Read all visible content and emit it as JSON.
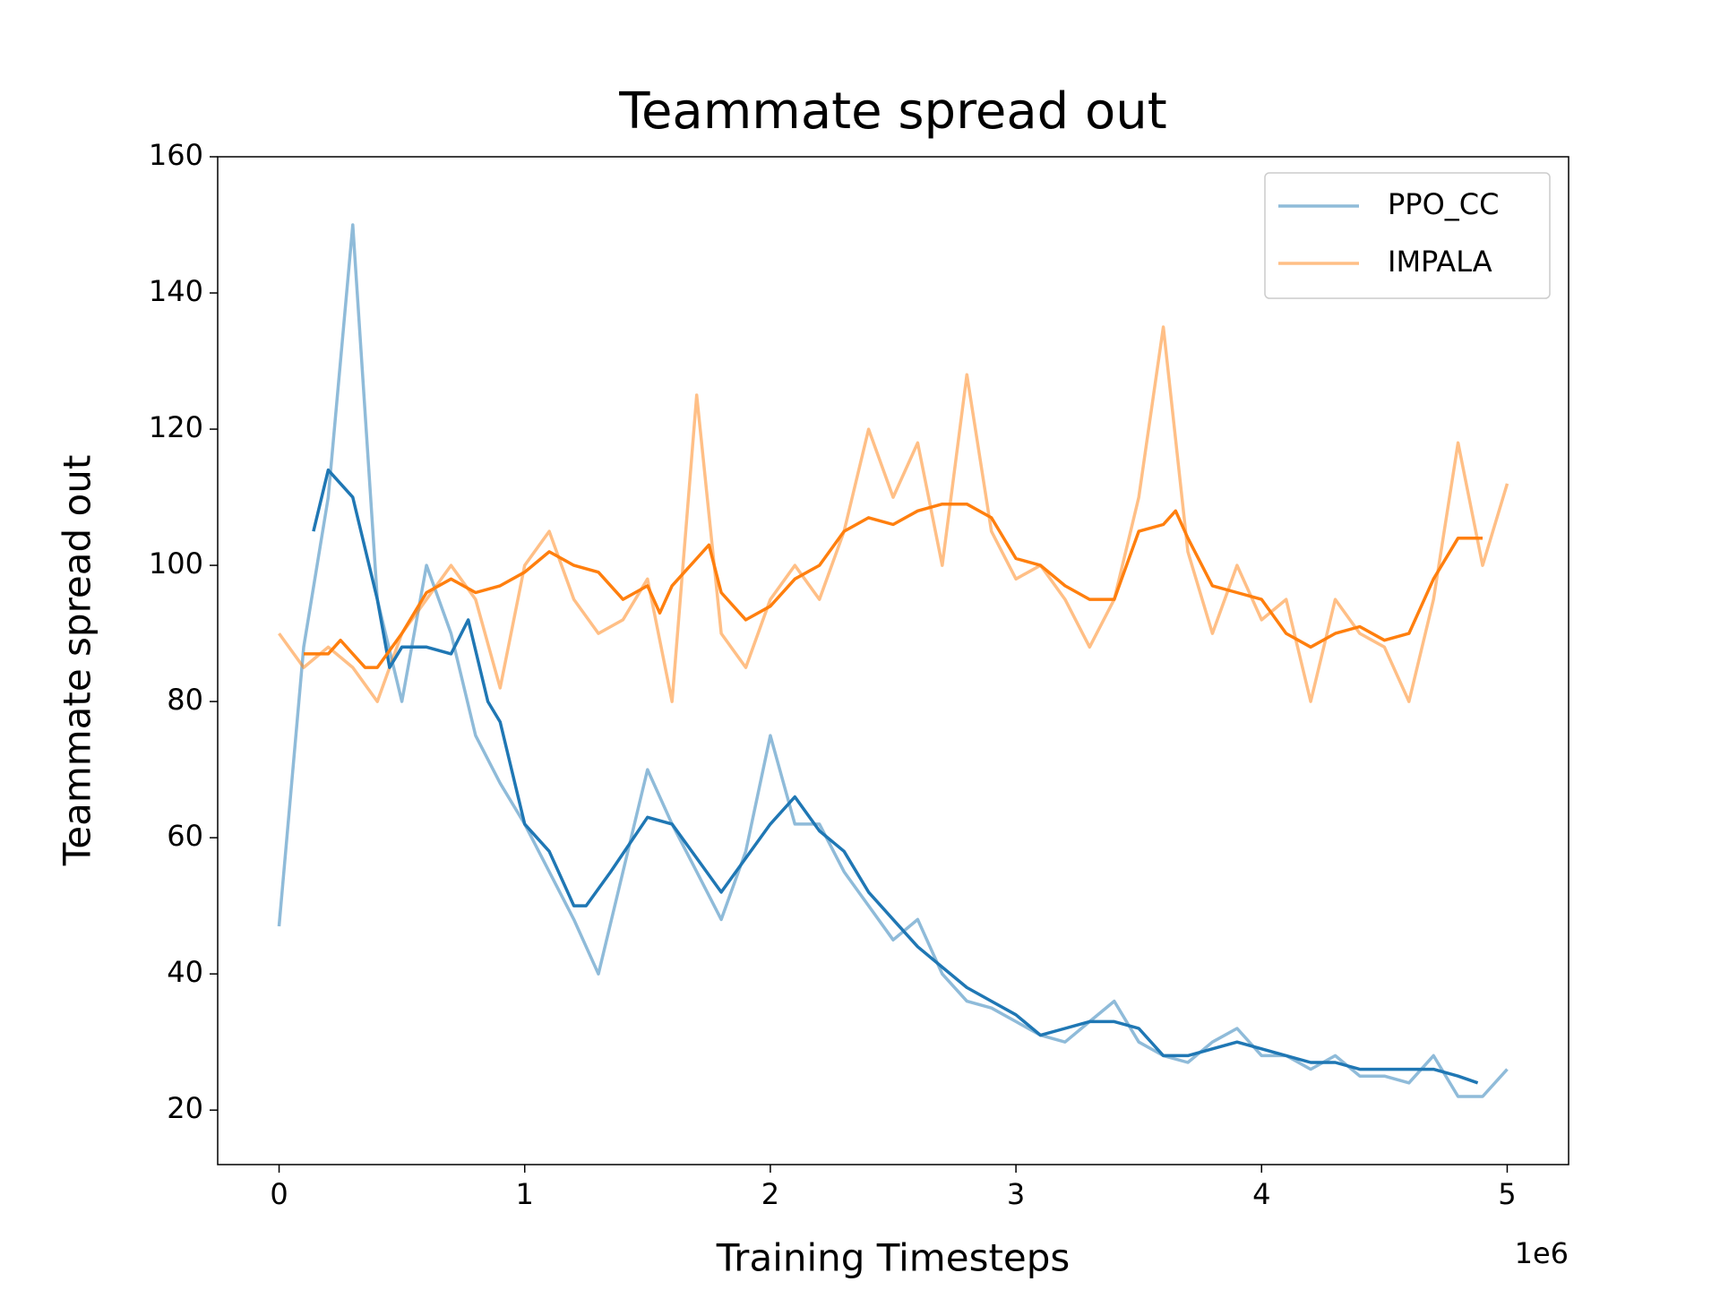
{
  "chart_data": {
    "type": "line",
    "title": "Teammate spread out",
    "x_label": "Training Timesteps",
    "y_label": "Teammate spread out",
    "x_offset_label": "1e6",
    "xlim": [
      -0.25,
      5.25
    ],
    "xticks": [
      0,
      1,
      2,
      3,
      4,
      5
    ],
    "ylim": [
      12,
      160
    ],
    "yticks": [
      20,
      40,
      60,
      80,
      100,
      120,
      140,
      160
    ],
    "legend": "upper right",
    "raw_alpha": 0.5,
    "x": [
      0,
      0.1,
      0.2,
      0.3,
      0.4,
      0.5,
      0.6,
      0.7,
      0.8,
      0.9,
      1.0,
      1.1,
      1.2,
      1.3,
      1.4,
      1.5,
      1.6,
      1.7,
      1.8,
      1.9,
      2.0,
      2.1,
      2.2,
      2.3,
      2.4,
      2.5,
      2.6,
      2.7,
      2.8,
      2.9,
      3.0,
      3.1,
      3.2,
      3.3,
      3.4,
      3.5,
      3.6,
      3.7,
      3.8,
      3.9,
      4.0,
      4.1,
      4.2,
      4.3,
      4.4,
      4.5,
      4.6,
      4.7,
      4.8,
      4.9,
      5.0
    ],
    "series": [
      {
        "name": "PPO_CC",
        "color": "#1f77b4",
        "values": [
          47,
          88,
          110,
          150,
          95,
          80,
          100,
          90,
          75,
          68,
          62,
          55,
          48,
          40,
          55,
          70,
          62,
          55,
          48,
          58,
          75,
          62,
          62,
          55,
          50,
          45,
          48,
          40,
          36,
          35,
          33,
          31,
          30,
          33,
          36,
          30,
          28,
          27,
          30,
          32,
          28,
          28,
          26,
          28,
          25,
          25,
          24,
          28,
          22,
          22,
          26
        ],
        "smoothed_x": [
          0.14,
          0.2,
          0.3,
          0.4,
          0.45,
          0.5,
          0.6,
          0.7,
          0.77,
          0.85,
          0.9,
          1.0,
          1.1,
          1.2,
          1.25,
          1.35,
          1.5,
          1.6,
          1.7,
          1.8,
          1.9,
          2.0,
          2.1,
          2.2,
          2.3,
          2.4,
          2.5,
          2.6,
          2.7,
          2.8,
          2.9,
          3.0,
          3.1,
          3.2,
          3.3,
          3.4,
          3.5,
          3.6,
          3.7,
          3.8,
          3.9,
          4.0,
          4.1,
          4.2,
          4.3,
          4.4,
          4.5,
          4.6,
          4.7,
          4.8,
          4.88
        ],
        "smoothed": [
          105,
          114,
          110,
          95,
          85,
          88,
          88,
          87,
          92,
          80,
          77,
          62,
          58,
          50,
          50,
          55,
          63,
          62,
          57,
          52,
          57,
          62,
          66,
          61,
          58,
          52,
          48,
          44,
          41,
          38,
          36,
          34,
          31,
          32,
          33,
          33,
          32,
          28,
          28,
          29,
          30,
          29,
          28,
          27,
          27,
          26,
          26,
          26,
          26,
          25,
          24
        ]
      },
      {
        "name": "IMPALA",
        "color": "#ff7f0e",
        "values": [
          90,
          85,
          88,
          85,
          80,
          90,
          95,
          100,
          95,
          82,
          100,
          105,
          95,
          90,
          92,
          98,
          80,
          125,
          90,
          85,
          95,
          100,
          95,
          105,
          120,
          110,
          118,
          100,
          128,
          105,
          98,
          100,
          95,
          88,
          95,
          110,
          135,
          102,
          90,
          100,
          92,
          95,
          80,
          95,
          90,
          88,
          80,
          95,
          118,
          100,
          112
        ],
        "smoothed_x": [
          0.1,
          0.2,
          0.25,
          0.3,
          0.35,
          0.4,
          0.5,
          0.6,
          0.7,
          0.8,
          0.9,
          1.0,
          1.1,
          1.2,
          1.3,
          1.4,
          1.5,
          1.55,
          1.6,
          1.7,
          1.75,
          1.8,
          1.9,
          2.0,
          2.1,
          2.2,
          2.3,
          2.4,
          2.5,
          2.6,
          2.7,
          2.8,
          2.9,
          3.0,
          3.1,
          3.2,
          3.3,
          3.4,
          3.5,
          3.6,
          3.65,
          3.7,
          3.8,
          3.9,
          4.0,
          4.1,
          4.2,
          4.3,
          4.4,
          4.5,
          4.6,
          4.7,
          4.8,
          4.9
        ],
        "smoothed": [
          87,
          87,
          89,
          87,
          85,
          85,
          90,
          96,
          98,
          96,
          97,
          99,
          102,
          100,
          99,
          95,
          97,
          93,
          97,
          101,
          103,
          96,
          92,
          94,
          98,
          100,
          105,
          107,
          106,
          108,
          109,
          109,
          107,
          101,
          100,
          97,
          95,
          95,
          105,
          106,
          108,
          104,
          97,
          96,
          95,
          90,
          88,
          90,
          91,
          89,
          90,
          98,
          104,
          104
        ]
      }
    ]
  }
}
